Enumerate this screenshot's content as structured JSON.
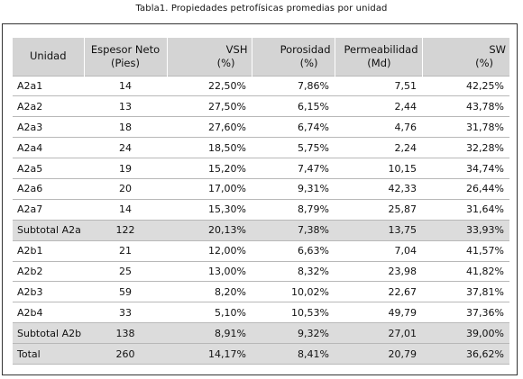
{
  "caption": "Tabla1. Propiedades petrofísicas promedias por unidad",
  "headers": {
    "unidad": "Unidad",
    "espesor_1": "Espesor Neto",
    "espesor_2": "(Pies)",
    "vsh_1": "VSH",
    "vsh_2": "(%)",
    "por_1": "Porosidad",
    "por_2": "(%)",
    "perm_1": "Permeabilidad",
    "perm_2": "(Md)",
    "sw_1": "SW",
    "sw_2": "(%)"
  },
  "rows": [
    [
      "A2a1",
      "14",
      "22,50%",
      "7,86%",
      "7,51",
      "42,25%"
    ],
    [
      "A2a2",
      "13",
      "27,50%",
      "6,15%",
      "2,44",
      "43,78%"
    ],
    [
      "A2a3",
      "18",
      "27,60%",
      "6,74%",
      "4,76",
      "31,78%"
    ],
    [
      "A2a4",
      "24",
      "18,50%",
      "5,75%",
      "2,24",
      "32,28%"
    ],
    [
      "A2a5",
      "19",
      "15,20%",
      "7,47%",
      "10,15",
      "34,74%"
    ],
    [
      "A2a6",
      "20",
      "17,00%",
      "9,31%",
      "42,33",
      "26,44%"
    ],
    [
      "A2a7",
      "14",
      "15,30%",
      "8,79%",
      "25,87",
      "31,64%"
    ],
    [
      "Subtotal A2a",
      "122",
      "20,13%",
      "7,38%",
      "13,75",
      "33,93%"
    ],
    [
      "A2b1",
      "21",
      "12,00%",
      "6,63%",
      "7,04",
      "41,57%"
    ],
    [
      "A2b2",
      "25",
      "13,00%",
      "8,32%",
      "23,98",
      "41,82%"
    ],
    [
      "A2b3",
      "59",
      "8,20%",
      "10,02%",
      "22,67",
      "37,81%"
    ],
    [
      "A2b4",
      "33",
      "5,10%",
      "10,53%",
      "49,79",
      "37,36%"
    ],
    [
      "Subtotal A2b",
      "138",
      "8,91%",
      "9,32%",
      "27,01",
      "39,00%"
    ],
    [
      "Total",
      "260",
      "14,17%",
      "8,41%",
      "20,79",
      "36,62%"
    ]
  ],
  "shaded_rows": [
    7,
    12,
    13
  ]
}
